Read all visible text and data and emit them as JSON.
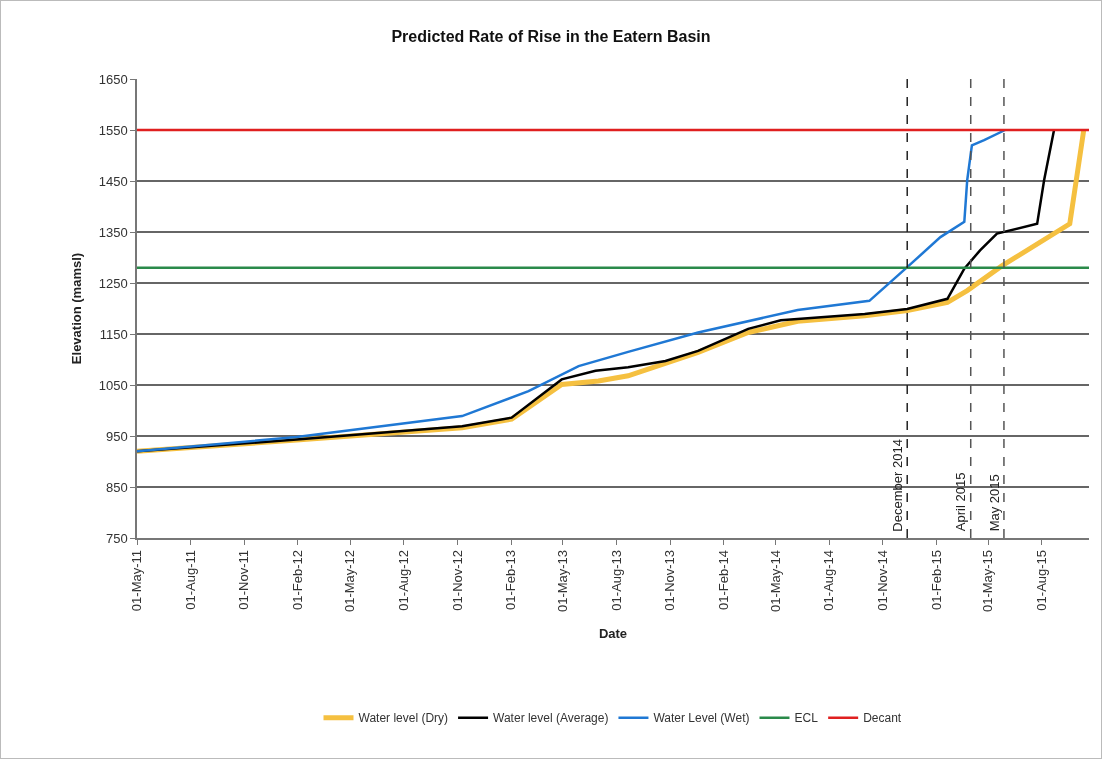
{
  "chart_data": {
    "type": "line",
    "title": "Predicted Rate of Rise in the Eatern Basin",
    "xlabel": "Date",
    "ylabel": "Elevation (mamsl)",
    "xlim": [
      "2011-05-01",
      "2015-10-21"
    ],
    "xticks": [
      {
        "value": "2011-05-01",
        "label": "01-May-11"
      },
      {
        "value": "2011-08-01",
        "label": "01-Aug-11"
      },
      {
        "value": "2011-11-01",
        "label": "01-Nov-11"
      },
      {
        "value": "2012-02-01",
        "label": "01-Feb-12"
      },
      {
        "value": "2012-05-01",
        "label": "01-May-12"
      },
      {
        "value": "2012-08-01",
        "label": "01-Aug-12"
      },
      {
        "value": "2012-11-01",
        "label": "01-Nov-12"
      },
      {
        "value": "2013-02-01",
        "label": "01-Feb-13"
      },
      {
        "value": "2013-05-01",
        "label": "01-May-13"
      },
      {
        "value": "2013-08-01",
        "label": "01-Aug-13"
      },
      {
        "value": "2013-11-01",
        "label": "01-Nov-13"
      },
      {
        "value": "2014-02-01",
        "label": "01-Feb-14"
      },
      {
        "value": "2014-05-01",
        "label": "01-May-14"
      },
      {
        "value": "2014-08-01",
        "label": "01-Aug-14"
      },
      {
        "value": "2014-11-01",
        "label": "01-Nov-14"
      },
      {
        "value": "2015-02-01",
        "label": "01-Feb-15"
      },
      {
        "value": "2015-05-01",
        "label": "01-May-15"
      },
      {
        "value": "2015-08-01",
        "label": "01-Aug-15"
      }
    ],
    "ylim": [
      750,
      1650
    ],
    "yticks": [
      750,
      850,
      950,
      1050,
      1150,
      1250,
      1350,
      1450,
      1550,
      1650
    ],
    "grid": "y",
    "legend": "bottom",
    "marker": "none",
    "line_style": "solid",
    "series": [
      {
        "name": "Water level (Dry)",
        "color": "#f5c040",
        "x": [
          "2011-05-01",
          "2012-01-30",
          "2012-11-09",
          "2013-02-02",
          "2013-04-29",
          "2013-07-01",
          "2013-08-21",
          "2013-12-19",
          "2014-03-15",
          "2014-06-08",
          "2014-10-01",
          "2014-12-13",
          "2015-02-20",
          "2015-03-26",
          "2015-05-25",
          "2015-09-18",
          "2015-10-12"
        ],
        "values": [
          920,
          942,
          966,
          983,
          1051,
          1058,
          1068,
          1114,
          1153,
          1175,
          1186,
          1196,
          1212,
          1235,
          1284,
          1366,
          1550
        ]
      },
      {
        "name": "Water level (Average)",
        "color": "#000000",
        "x": [
          "2011-05-01",
          "2012-01-30",
          "2012-11-09",
          "2013-02-02",
          "2013-04-29",
          "2013-06-26",
          "2013-08-21",
          "2013-10-24",
          "2013-12-19",
          "2014-03-15",
          "2014-05-10",
          "2014-10-01",
          "2014-12-13",
          "2015-02-20",
          "2015-03-21",
          "2015-04-17",
          "2015-05-16",
          "2015-07-24",
          "2015-08-05",
          "2015-08-22"
        ],
        "values": [
          920,
          943,
          969,
          986,
          1061,
          1078,
          1085,
          1097,
          1117,
          1160,
          1177,
          1189,
          1199,
          1219,
          1278,
          1314,
          1347,
          1366,
          1452,
          1550
        ]
      },
      {
        "name": "Water Level (Wet)",
        "color": "#1f78d4",
        "x": [
          "2011-05-01",
          "2012-01-30",
          "2012-11-09",
          "2013-03-03",
          "2013-05-28",
          "2013-08-21",
          "2013-12-19",
          "2014-06-08",
          "2014-10-09",
          "2014-12-13",
          "2015-02-08",
          "2015-03-21",
          "2015-03-26",
          "2015-04-03",
          "2015-04-24",
          "2015-05-30"
        ],
        "values": [
          920,
          948,
          989,
          1038,
          1087,
          1115,
          1153,
          1197,
          1215,
          1281,
          1340,
          1370,
          1452,
          1520,
          1530,
          1550
        ]
      },
      {
        "name": "ECL",
        "color": "#2a8a4a",
        "x": [
          "2011-05-01",
          "2015-10-21"
        ],
        "values": [
          1280,
          1280
        ]
      },
      {
        "name": "Decant",
        "color": "#e02020",
        "x": [
          "2011-05-01",
          "2015-10-21"
        ],
        "values": [
          1550,
          1550
        ]
      }
    ],
    "ref_lines": [
      {
        "axis": "x",
        "value": "2014-12-13",
        "label": "December 2014",
        "color": "#222222",
        "line_style": "dashed"
      },
      {
        "axis": "x",
        "value": "2015-04-01",
        "label": "April 2015",
        "color": "#555555",
        "line_style": "dashed"
      },
      {
        "axis": "x",
        "value": "2015-05-28",
        "label": "May 2015",
        "color": "#555555",
        "line_style": "dashed"
      }
    ]
  }
}
